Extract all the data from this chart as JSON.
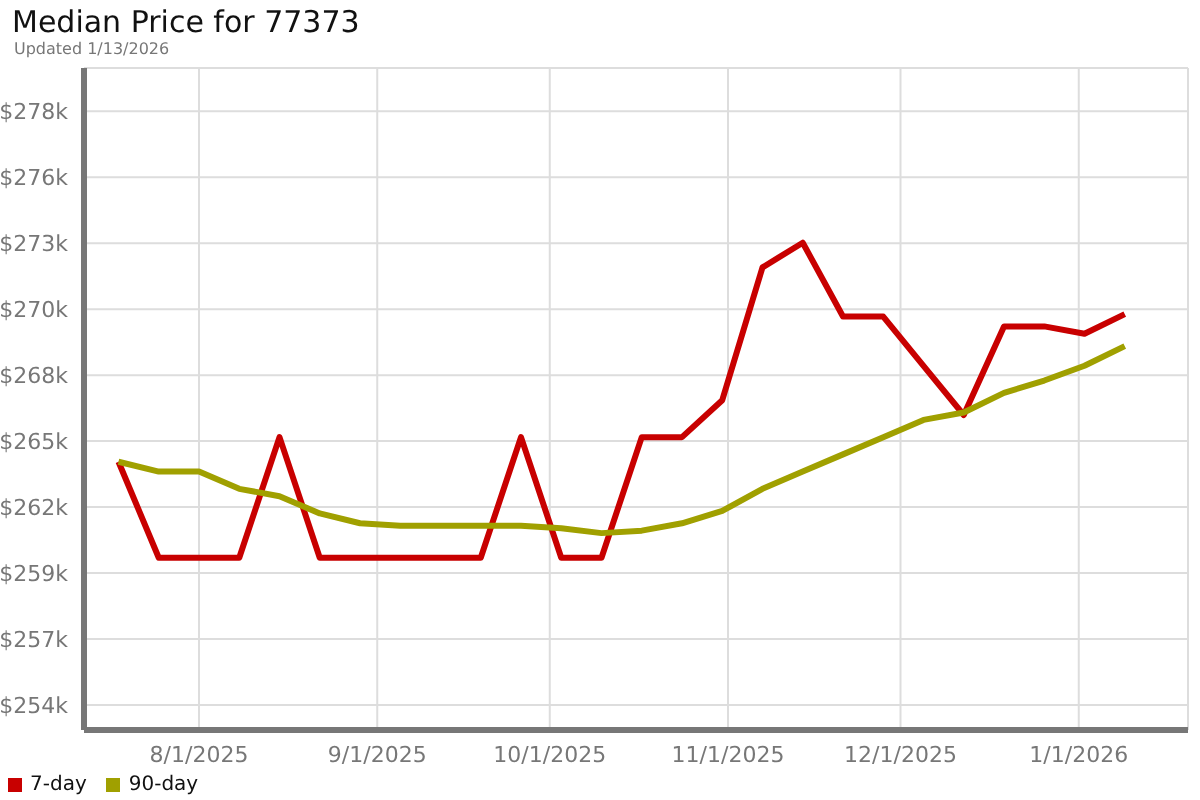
{
  "chart_data": {
    "type": "line",
    "title": "Median Price for 77373",
    "subtitle": "Updated 1/13/2026",
    "x": [
      "2025-07-18",
      "2025-07-25",
      "2025-08-01",
      "2025-08-08",
      "2025-08-15",
      "2025-08-22",
      "2025-08-29",
      "2025-09-05",
      "2025-09-12",
      "2025-09-19",
      "2025-09-26",
      "2025-10-03",
      "2025-10-10",
      "2025-10-17",
      "2025-10-24",
      "2025-10-31",
      "2025-11-07",
      "2025-11-14",
      "2025-11-21",
      "2025-11-28",
      "2025-12-05",
      "2025-12-12",
      "2025-12-19",
      "2025-12-26",
      "2026-01-02",
      "2026-01-09"
    ],
    "series": [
      {
        "name": "7-day",
        "color": "#c80000",
        "values": [
          264.0,
          260.1,
          260.1,
          260.1,
          265.0,
          260.1,
          260.1,
          260.1,
          260.1,
          260.1,
          265.0,
          260.1,
          260.1,
          265.0,
          265.0,
          266.5,
          271.9,
          272.9,
          269.9,
          269.9,
          267.9,
          265.9,
          269.5,
          269.5,
          269.2,
          270.0
        ]
      },
      {
        "name": "90-day",
        "color": "#a0a000",
        "values": [
          264.0,
          263.6,
          263.6,
          262.9,
          262.6,
          261.9,
          261.5,
          261.4,
          261.4,
          261.4,
          261.4,
          261.3,
          261.1,
          261.2,
          261.5,
          262.0,
          262.9,
          263.6,
          264.3,
          265.0,
          265.7,
          266.0,
          266.8,
          267.3,
          267.9,
          268.7
        ]
      }
    ],
    "xlim": [
      "2025-07-12",
      "2026-01-20"
    ],
    "xticks": [
      {
        "value": "2025-08-01",
        "label": "8/1/2025"
      },
      {
        "value": "2025-09-01",
        "label": "9/1/2025"
      },
      {
        "value": "2025-10-01",
        "label": "10/1/2025"
      },
      {
        "value": "2025-11-01",
        "label": "11/1/2025"
      },
      {
        "value": "2025-12-01",
        "label": "12/1/2025"
      },
      {
        "value": "2026-01-01",
        "label": "1/1/2026"
      }
    ],
    "ylim": [
      253.1,
      280.0
    ],
    "yticks": [
      {
        "value": 254.12,
        "label": "$254k"
      },
      {
        "value": 256.8,
        "label": "$257k"
      },
      {
        "value": 259.48,
        "label": "$259k"
      },
      {
        "value": 262.16,
        "label": "$262k"
      },
      {
        "value": 264.84,
        "label": "$265k"
      },
      {
        "value": 267.52,
        "label": "$268k"
      },
      {
        "value": 270.2,
        "label": "$270k"
      },
      {
        "value": 272.88,
        "label": "$273k"
      },
      {
        "value": 275.56,
        "label": "$276k"
      },
      {
        "value": 278.24,
        "label": "$278k"
      }
    ],
    "grid": true,
    "legend": "bottom left",
    "marker": "none",
    "line_style": "solid"
  }
}
